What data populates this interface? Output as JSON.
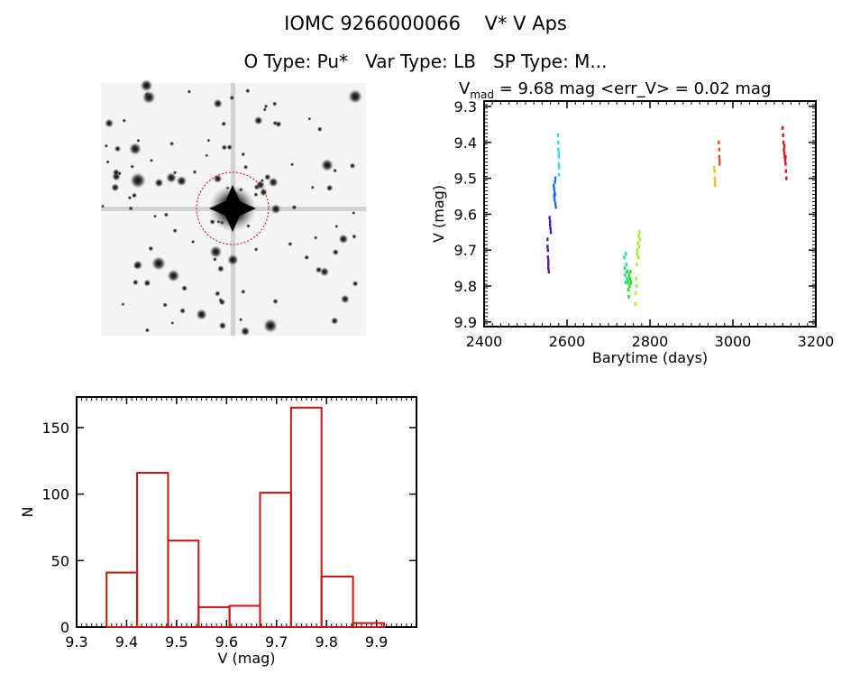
{
  "title": {
    "line1": "IOMC 9266000066    V* V Aps",
    "line2": "O Type: Pu*   Var Type: LB   SP Type: M..."
  },
  "image_panel": {
    "description_label": "sky-image"
  },
  "chart_data": [
    {
      "type": "scatter",
      "title_prefix": "V",
      "title_sub": "mad",
      "title_rest": " = 9.68 mag <err_V> = 0.02 mag",
      "xlabel": "Barytime (days)",
      "ylabel": "V (mag)",
      "xlim": [
        2400,
        3200
      ],
      "ylim": [
        9.285,
        9.913
      ],
      "y_inverted": true,
      "xticks": [
        2400,
        2600,
        2800,
        3000,
        3200
      ],
      "xtick_labels": [
        "2400",
        "2600",
        "2800",
        "3000",
        "3200"
      ],
      "yticks": [
        9.3,
        9.4,
        9.5,
        9.6,
        9.7,
        9.8,
        9.9
      ],
      "ytick_labels": [
        "9.3",
        "9.4",
        "9.5",
        "9.6",
        "9.7",
        "9.8",
        "9.9"
      ],
      "grid": false,
      "series": [
        {
          "name": "s1",
          "color": "#5a1a8c",
          "points": [
            [
              2553,
              9.67
            ],
            [
              2553,
              9.69
            ],
            [
              2554,
              9.7
            ],
            [
              2554,
              9.72
            ],
            [
              2555,
              9.73
            ],
            [
              2555,
              9.74
            ],
            [
              2555,
              9.75
            ],
            [
              2556,
              9.76
            ]
          ]
        },
        {
          "name": "s2",
          "color": "#2a20c8",
          "points": [
            [
              2558,
              9.61
            ],
            [
              2559,
              9.62
            ],
            [
              2559,
              9.63
            ],
            [
              2560,
              9.64
            ],
            [
              2561,
              9.65
            ]
          ]
        },
        {
          "name": "s3",
          "color": "#1a70e0",
          "points": [
            [
              2568,
              9.52
            ],
            [
              2569,
              9.53
            ],
            [
              2569,
              9.55
            ],
            [
              2570,
              9.54
            ],
            [
              2570,
              9.56
            ],
            [
              2571,
              9.51
            ],
            [
              2572,
              9.5
            ],
            [
              2572,
              9.57
            ],
            [
              2573,
              9.58
            ],
            [
              2571,
              9.545
            ]
          ]
        },
        {
          "name": "s4",
          "color": "#30dcf0",
          "points": [
            [
              2578,
              9.38
            ],
            [
              2579,
              9.4
            ],
            [
              2579,
              9.42
            ],
            [
              2580,
              9.44
            ],
            [
              2580,
              9.46
            ],
            [
              2581,
              9.47
            ],
            [
              2581,
              9.49
            ],
            [
              2580,
              9.43
            ]
          ]
        },
        {
          "name": "s5",
          "color": "#20e090",
          "points": [
            [
              2738,
              9.72
            ],
            [
              2739,
              9.75
            ],
            [
              2740,
              9.77
            ],
            [
              2741,
              9.79
            ],
            [
              2742,
              9.71
            ],
            [
              2743,
              9.74
            ],
            [
              2744,
              9.76
            ],
            [
              2745,
              9.78
            ]
          ]
        },
        {
          "name": "s6",
          "color": "#20e020",
          "points": [
            [
              2746,
              9.76
            ],
            [
              2747,
              9.79
            ],
            [
              2748,
              9.81
            ],
            [
              2749,
              9.83
            ],
            [
              2750,
              9.77
            ],
            [
              2751,
              9.8
            ],
            [
              2752,
              9.78
            ],
            [
              2753,
              9.76
            ],
            [
              2754,
              9.79
            ]
          ]
        },
        {
          "name": "s7",
          "color": "#a0f030",
          "points": [
            [
              2765,
              9.85
            ],
            [
              2766,
              9.82
            ],
            [
              2767,
              9.78
            ],
            [
              2768,
              9.74
            ],
            [
              2769,
              9.71
            ],
            [
              2770,
              9.7
            ],
            [
              2771,
              9.68
            ],
            [
              2772,
              9.72
            ],
            [
              2773,
              9.66
            ],
            [
              2774,
              9.69
            ],
            [
              2775,
              9.65
            ],
            [
              2776,
              9.67
            ],
            [
              2768,
              9.8
            ]
          ]
        },
        {
          "name": "s8",
          "color": "#f0c020",
          "points": [
            [
              2955,
              9.47
            ],
            [
              2956,
              9.48
            ],
            [
              2956,
              9.5
            ],
            [
              2957,
              9.51
            ],
            [
              2957,
              9.52
            ]
          ]
        },
        {
          "name": "s9",
          "color": "#e05020",
          "points": [
            [
              2966,
              9.4
            ],
            [
              2967,
              9.42
            ],
            [
              2967,
              9.44
            ],
            [
              2968,
              9.45
            ],
            [
              2968,
              9.46
            ]
          ]
        },
        {
          "name": "s10",
          "color": "#e01010",
          "points": [
            [
              3120,
              9.36
            ],
            [
              3121,
              9.38
            ],
            [
              3122,
              9.4
            ],
            [
              3123,
              9.42
            ],
            [
              3124,
              9.43
            ],
            [
              3125,
              9.44
            ],
            [
              3126,
              9.45
            ],
            [
              3127,
              9.46
            ],
            [
              3128,
              9.48
            ],
            [
              3129,
              9.5
            ],
            [
              3124,
              9.41
            ],
            [
              3127,
              9.44
            ]
          ]
        }
      ]
    },
    {
      "type": "bar",
      "subtype": "histogram",
      "xlabel": "V (mag)",
      "ylabel": "N",
      "xlim": [
        9.3,
        9.98
      ],
      "ylim": [
        0,
        173
      ],
      "xticks": [
        9.3,
        9.4,
        9.5,
        9.6,
        9.7,
        9.8,
        9.9
      ],
      "xtick_labels": [
        "9.3",
        "9.4",
        "9.5",
        "9.6",
        "9.7",
        "9.8",
        "9.9"
      ],
      "yticks": [
        0,
        50,
        100,
        150
      ],
      "ytick_labels": [
        "0",
        "50",
        "100",
        "150"
      ],
      "bin_edges": [
        9.36,
        9.421,
        9.483,
        9.544,
        9.606,
        9.667,
        9.729,
        9.79,
        9.853,
        9.915
      ],
      "values": [
        41,
        116,
        65,
        15,
        16,
        101,
        165,
        38,
        3
      ],
      "color": "#cc1111",
      "grid": false
    }
  ]
}
